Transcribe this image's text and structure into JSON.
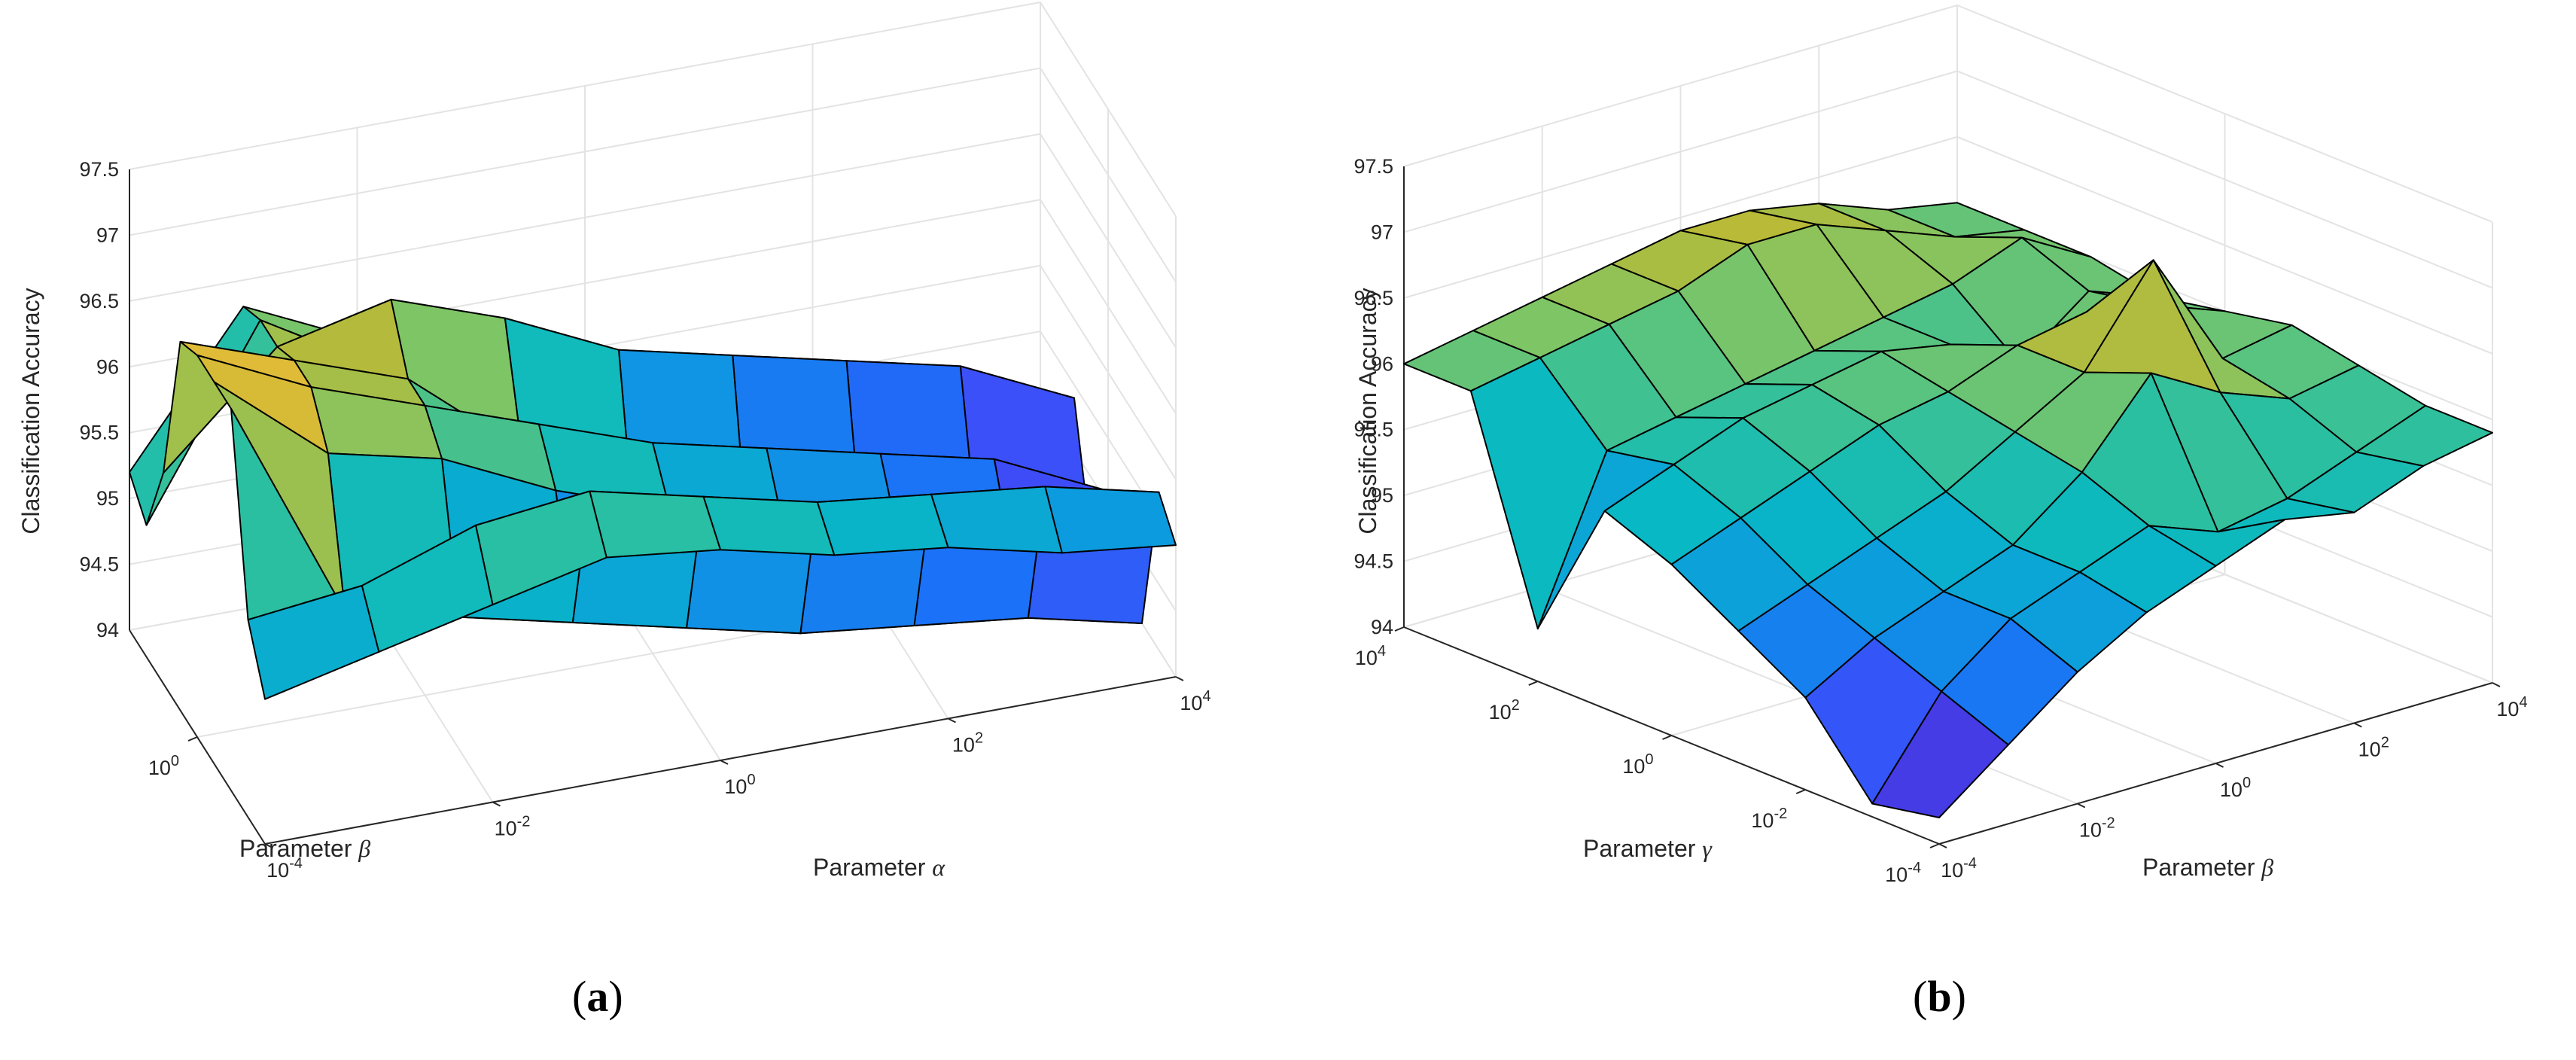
{
  "chart_data": [
    {
      "type": "surface3d",
      "panel_label": "a",
      "title": "",
      "zlabel": "Classification Accuracy",
      "xlabel": "Parameter α",
      "xlabel_base": "Parameter",
      "xlabel_symbol": "α",
      "ylabel": "Parameter β",
      "ylabel_base": "Parameter",
      "ylabel_symbol": "β",
      "zlim": [
        94,
        97.5
      ],
      "zticks": [
        "94",
        "94.5",
        "95",
        "95.5",
        "96",
        "96.5",
        "97",
        "97.5"
      ],
      "x_exponents": [
        -4,
        -3,
        -2,
        -1,
        0,
        1,
        2,
        3,
        4
      ],
      "x_tick_labels": [
        {
          "base": "10",
          "exp": "-4"
        },
        {
          "base": "10",
          "exp": "-2"
        },
        {
          "base": "10",
          "exp": "0"
        },
        {
          "base": "10",
          "exp": "2"
        },
        {
          "base": "10",
          "exp": "4"
        }
      ],
      "y_exponents": [
        -4,
        -3,
        -2,
        -1,
        0,
        1,
        2,
        3,
        4
      ],
      "y_tick_labels": [
        {
          "base": "10",
          "exp": "0"
        }
      ],
      "z_values": [
        [
          95.1,
          95.3,
          95.5,
          95.7,
          95.6,
          95.4,
          95.3,
          95.1,
          95.0
        ],
        [
          95.5,
          95.6,
          95.9,
          96.0,
          95.8,
          95.6,
          95.5,
          95.4,
          95.2
        ],
        [
          96.9,
          95.2,
          95.0,
          94.8,
          94.6,
          94.4,
          94.3,
          94.2,
          94.0
        ],
        [
          96.9,
          96.2,
          96.0,
          95.6,
          95.3,
          95.0,
          94.8,
          94.5,
          94.2
        ],
        [
          96.9,
          96.5,
          96.2,
          95.9,
          95.6,
          95.4,
          95.2,
          95.0,
          94.6
        ],
        [
          96.8,
          96.5,
          96.2,
          95.5,
          94.6,
          94.3,
          94.2,
          94.2,
          94.0
        ],
        [
          95.6,
          96.4,
          96.6,
          96.3,
          95.9,
          95.7,
          95.5,
          95.3,
          94.9
        ],
        [
          95.0,
          96.4,
          95.9,
          95.2,
          94.9,
          94.6,
          94.4,
          94.3,
          94.1
        ],
        [
          95.2,
          96.3,
          95.9,
          95.9,
          95.3,
          94.9,
          94.6,
          94.3,
          94.0
        ]
      ],
      "colormap": [
        "#3e26a8",
        "#4743f8",
        "#1c6ff8",
        "#0d9ae0",
        "#08b8c4",
        "#2ec09e",
        "#80c564",
        "#c0b932",
        "#f9bd3c",
        "#f9fb15"
      ]
    },
    {
      "type": "surface3d",
      "panel_label": "b",
      "title": "",
      "zlabel": "Classification Accuracy",
      "xlabel": "Parameter β",
      "xlabel_base": "Parameter",
      "xlabel_symbol": "β",
      "ylabel": "Parameter γ",
      "ylabel_base": "Parameter",
      "ylabel_symbol": "γ",
      "zlim": [
        94,
        97.5
      ],
      "zticks": [
        "94",
        "94.5",
        "95",
        "95.5",
        "96",
        "96.5",
        "97",
        "97.5"
      ],
      "x_exponents": [
        -4,
        -3,
        -2,
        -1,
        0,
        1,
        2,
        3,
        4
      ],
      "x_tick_labels": [
        {
          "base": "10",
          "exp": "-4"
        },
        {
          "base": "10",
          "exp": "-2"
        },
        {
          "base": "10",
          "exp": "0"
        },
        {
          "base": "10",
          "exp": "2"
        },
        {
          "base": "10",
          "exp": "4"
        }
      ],
      "y_exponents": [
        -4,
        -3,
        -2,
        -1,
        0,
        1,
        2,
        3,
        4
      ],
      "y_tick_labels": [
        {
          "base": "10",
          "exp": "-4"
        },
        {
          "base": "10",
          "exp": "-2"
        },
        {
          "base": "10",
          "exp": "0"
        },
        {
          "base": "10",
          "exp": "2"
        },
        {
          "base": "10",
          "exp": "4"
        }
      ],
      "z_values": [
        [
          94.2,
          94.6,
          95.0,
          95.3,
          95.5,
          95.7,
          95.6,
          95.8,
          95.9
        ],
        [
          94.1,
          94.8,
          95.2,
          95.4,
          95.6,
          95.4,
          95.5,
          95.7,
          95.9
        ],
        [
          94.7,
          95.0,
          95.2,
          95.4,
          95.8,
          96.4,
          96.1,
          95.9,
          96.0
        ],
        [
          95.0,
          95.2,
          95.4,
          95.6,
          95.9,
          96.2,
          96.9,
          96.0,
          96.1
        ],
        [
          95.3,
          95.5,
          95.7,
          95.9,
          96.0,
          96.2,
          96.3,
          96.2,
          96.0
        ],
        [
          95.5,
          95.7,
          95.9,
          96.0,
          96.1,
          96.0,
          95.7,
          96.1,
          95.9
        ],
        [
          94.4,
          95.6,
          95.7,
          95.8,
          95.9,
          96.0,
          96.1,
          96.3,
          96.0
        ],
        [
          96.0,
          96.1,
          96.2,
          96.3,
          96.5,
          96.5,
          96.3,
          96.1,
          96.0
        ],
        [
          96.0,
          96.1,
          96.2,
          96.3,
          96.4,
          96.4,
          96.3,
          96.1,
          96.0
        ]
      ],
      "colormap": [
        "#3e26a8",
        "#4743f8",
        "#1c6ff8",
        "#0d9ae0",
        "#08b8c4",
        "#2ec09e",
        "#80c564",
        "#c0b932",
        "#f9bd3c",
        "#f9fb15"
      ]
    }
  ]
}
